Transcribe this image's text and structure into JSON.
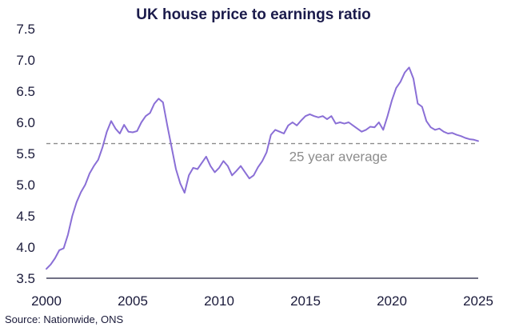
{
  "chart_data": {
    "type": "line",
    "title": "UK house price to earnings ratio",
    "xlabel": "",
    "ylabel": "",
    "xlim": [
      2000,
      2025
    ],
    "ylim": [
      3.5,
      7.5
    ],
    "xticks": [
      2000,
      2005,
      2010,
      2015,
      2020,
      2025
    ],
    "xtick_labels": [
      "2000",
      "2005",
      "2010",
      "2015",
      "2020",
      "2025"
    ],
    "yticks": [
      3.5,
      4.0,
      4.5,
      5.0,
      5.5,
      6.0,
      6.5,
      7.0,
      7.5
    ],
    "ytick_labels": [
      "3.5",
      "4.0",
      "4.5",
      "5.0",
      "5.5",
      "6.0",
      "6.5",
      "7.0",
      "7.5"
    ],
    "grid": false,
    "series": [
      {
        "name": "House price to earnings ratio",
        "color": "#8a6fd6",
        "x": [
          2000.0,
          2000.25,
          2000.5,
          2000.75,
          2001.0,
          2001.25,
          2001.5,
          2001.75,
          2002.0,
          2002.25,
          2002.5,
          2002.75,
          2003.0,
          2003.25,
          2003.5,
          2003.75,
          2004.0,
          2004.25,
          2004.5,
          2004.75,
          2005.0,
          2005.25,
          2005.5,
          2005.75,
          2006.0,
          2006.25,
          2006.5,
          2006.75,
          2007.0,
          2007.25,
          2007.5,
          2007.75,
          2008.0,
          2008.25,
          2008.5,
          2008.75,
          2009.0,
          2009.25,
          2009.5,
          2009.75,
          2010.0,
          2010.25,
          2010.5,
          2010.75,
          2011.0,
          2011.25,
          2011.5,
          2011.75,
          2012.0,
          2012.25,
          2012.5,
          2012.75,
          2013.0,
          2013.25,
          2013.5,
          2013.75,
          2014.0,
          2014.25,
          2014.5,
          2014.75,
          2015.0,
          2015.25,
          2015.5,
          2015.75,
          2016.0,
          2016.25,
          2016.5,
          2016.75,
          2017.0,
          2017.25,
          2017.5,
          2017.75,
          2018.0,
          2018.25,
          2018.5,
          2018.75,
          2019.0,
          2019.25,
          2019.5,
          2019.75,
          2020.0,
          2020.25,
          2020.5,
          2020.75,
          2021.0,
          2021.25,
          2021.5,
          2021.75,
          2022.0,
          2022.25,
          2022.5,
          2022.75,
          2023.0,
          2023.25,
          2023.5,
          2023.75,
          2024.0,
          2024.25,
          2024.5,
          2024.75,
          2025.0
        ],
        "values": [
          3.65,
          3.72,
          3.82,
          3.95,
          3.98,
          4.2,
          4.5,
          4.72,
          4.88,
          5.0,
          5.18,
          5.3,
          5.4,
          5.6,
          5.85,
          6.02,
          5.9,
          5.82,
          5.96,
          5.85,
          5.84,
          5.86,
          6.0,
          6.1,
          6.15,
          6.3,
          6.38,
          6.32,
          5.95,
          5.6,
          5.25,
          5.02,
          4.87,
          5.15,
          5.27,
          5.25,
          5.35,
          5.45,
          5.3,
          5.2,
          5.27,
          5.38,
          5.3,
          5.15,
          5.22,
          5.3,
          5.2,
          5.1,
          5.15,
          5.28,
          5.38,
          5.52,
          5.8,
          5.88,
          5.85,
          5.82,
          5.95,
          6.0,
          5.95,
          6.03,
          6.1,
          6.13,
          6.1,
          6.08,
          6.1,
          6.05,
          6.1,
          5.98,
          6.0,
          5.98,
          6.0,
          5.95,
          5.9,
          5.85,
          5.88,
          5.93,
          5.92,
          6.0,
          5.88,
          6.1,
          6.35,
          6.55,
          6.65,
          6.8,
          6.88,
          6.7,
          6.3,
          6.25,
          6.02,
          5.92,
          5.88,
          5.9,
          5.85,
          5.82,
          5.83,
          5.8,
          5.78,
          5.75,
          5.73,
          5.72,
          5.7
        ]
      }
    ],
    "reference_line": {
      "value": 5.66,
      "style": "dashed",
      "color": "#8c8c8c",
      "label": "25 year average"
    },
    "source": "Source: Nationwide, ONS"
  }
}
